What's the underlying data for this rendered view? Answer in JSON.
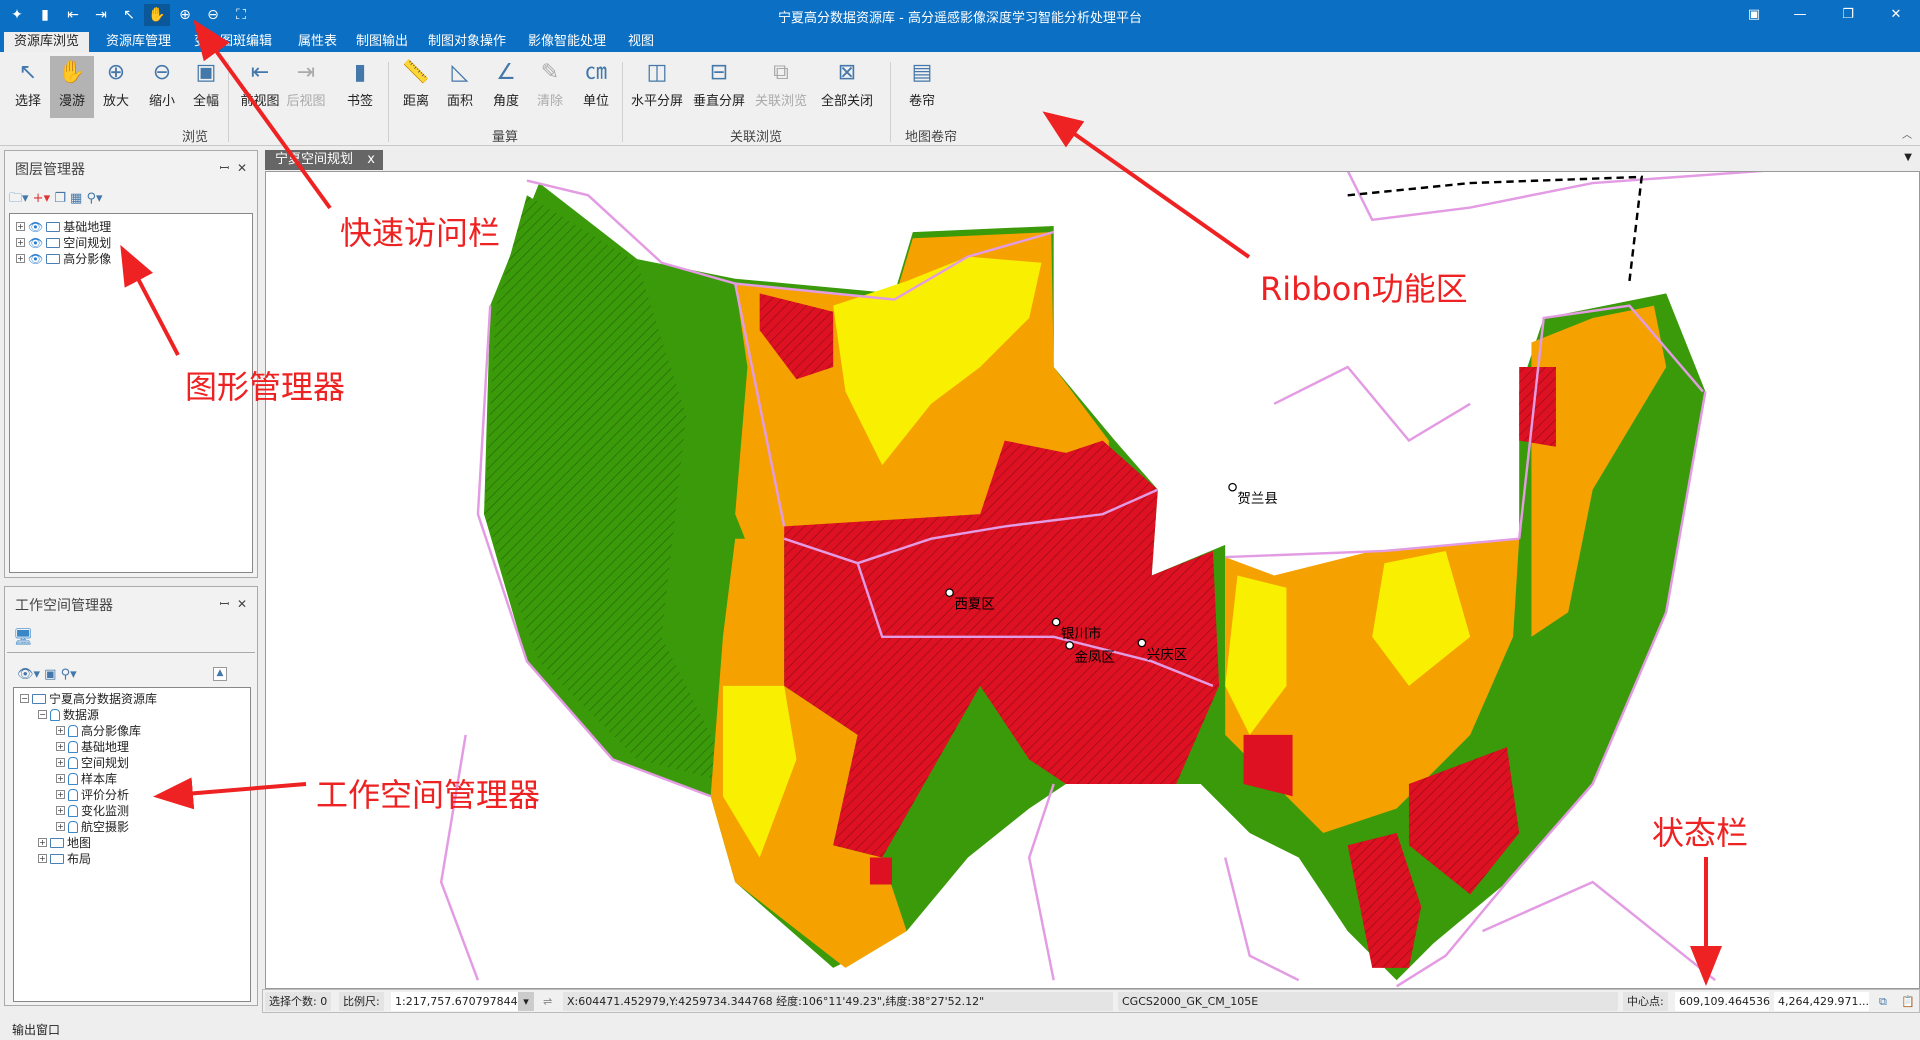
{
  "titlebar": {
    "title": "宁夏高分数据资源库 - 高分遥感影像深度学习智能分析处理平台",
    "quick_access": [
      {
        "icon": "app-logo-icon",
        "glyph": "✦"
      },
      {
        "icon": "save-icon",
        "glyph": "▮"
      },
      {
        "icon": "back-view-icon",
        "glyph": "⇤"
      },
      {
        "icon": "forward-view-icon",
        "glyph": "⇥"
      },
      {
        "icon": "select-pointer-icon",
        "glyph": "↖"
      },
      {
        "icon": "pan-hand-icon",
        "glyph": "✋"
      },
      {
        "icon": "zoom-in-icon",
        "glyph": "⊕"
      },
      {
        "icon": "zoom-out-icon",
        "glyph": "⊖"
      },
      {
        "icon": "full-extent-icon",
        "glyph": "⛶"
      }
    ],
    "window_buttons": [
      "▣",
      "—",
      "❐",
      "✕"
    ]
  },
  "menu": {
    "tabs": [
      "资源库浏览",
      "资源库管理",
      "变化图斑编辑",
      "属性表",
      "制图输出",
      "制图对象操作",
      "影像智能处理",
      "视图"
    ],
    "active": 0
  },
  "ribbon": {
    "groups": [
      "浏览",
      "量算",
      "关联浏览",
      "地图卷帘"
    ],
    "buttons": [
      {
        "label": "选择",
        "glyph": "↖",
        "enabled": true
      },
      {
        "label": "漫游",
        "glyph": "✋",
        "enabled": true,
        "active": true
      },
      {
        "label": "放大",
        "glyph": "⊕",
        "enabled": true
      },
      {
        "label": "缩小",
        "glyph": "⊖",
        "enabled": true
      },
      {
        "label": "全幅",
        "glyph": "▣",
        "enabled": true
      },
      {
        "label": "前视图",
        "glyph": "⇤",
        "enabled": true
      },
      {
        "label": "后视图",
        "glyph": "⇥",
        "enabled": false
      },
      {
        "label": "书签",
        "glyph": "▮",
        "enabled": true
      },
      {
        "label": "距离",
        "glyph": "📏",
        "enabled": true
      },
      {
        "label": "面积",
        "glyph": "◺",
        "enabled": true
      },
      {
        "label": "角度",
        "glyph": "∠",
        "enabled": true
      },
      {
        "label": "清除",
        "glyph": "✎",
        "enabled": false
      },
      {
        "label": "单位",
        "glyph": "㎝",
        "enabled": true
      },
      {
        "label": "水平分屏",
        "glyph": "◫",
        "enabled": true
      },
      {
        "label": "垂直分屏",
        "glyph": "⊟",
        "enabled": true
      },
      {
        "label": "关联浏览",
        "glyph": "⧉",
        "enabled": false
      },
      {
        "label": "全部关闭",
        "glyph": "⊠",
        "enabled": true
      },
      {
        "label": "卷帘",
        "glyph": "▤",
        "enabled": true
      }
    ]
  },
  "layer_manager": {
    "title": "图层管理器",
    "pin": "ꟷ",
    "close": "✕",
    "layers": [
      "基础地理",
      "空间规划",
      "高分影像"
    ]
  },
  "workspace_manager": {
    "title": "工作空间管理器",
    "pin": "ꟷ",
    "close": "✕",
    "root": "宁夏高分数据资源库",
    "datasource": "数据源",
    "datasets": [
      "高分影像库",
      "基础地理",
      "空间规划",
      "样本库",
      "评价分析",
      "变化监测",
      "航空摄影"
    ],
    "others": [
      "地图",
      "布局"
    ]
  },
  "map": {
    "tab": "宁夏空间规划",
    "tab_close": "x",
    "labels": [
      "贺兰县",
      "西夏区",
      "银川市",
      "金凤区",
      "兴庆区"
    ],
    "colors": {
      "green": "#3a9a0a",
      "orange": "#f5a200",
      "yellow": "#f8f000",
      "red": "#dd1122",
      "boundary": "#e39be3"
    }
  },
  "statusbar": {
    "select_label": "选择个数:",
    "select_count": "0",
    "scale_label": "比例尺:",
    "scale": "1:217,757.670797844",
    "coords": "X:604471.452979,Y:4259734.344768  经度:106°11'49.23\",纬度:38°27'52.12\"",
    "crs": "CGCS2000_GK_CM_105E",
    "center_label": "中心点:",
    "center_x": "609,109.464536",
    "center_y": "4,264,429.971..."
  },
  "output_window": "输出窗口",
  "annotations": [
    "快速访问栏",
    "Ribbon功能区",
    "图形管理器",
    "工作空间管理器",
    "状态栏"
  ]
}
